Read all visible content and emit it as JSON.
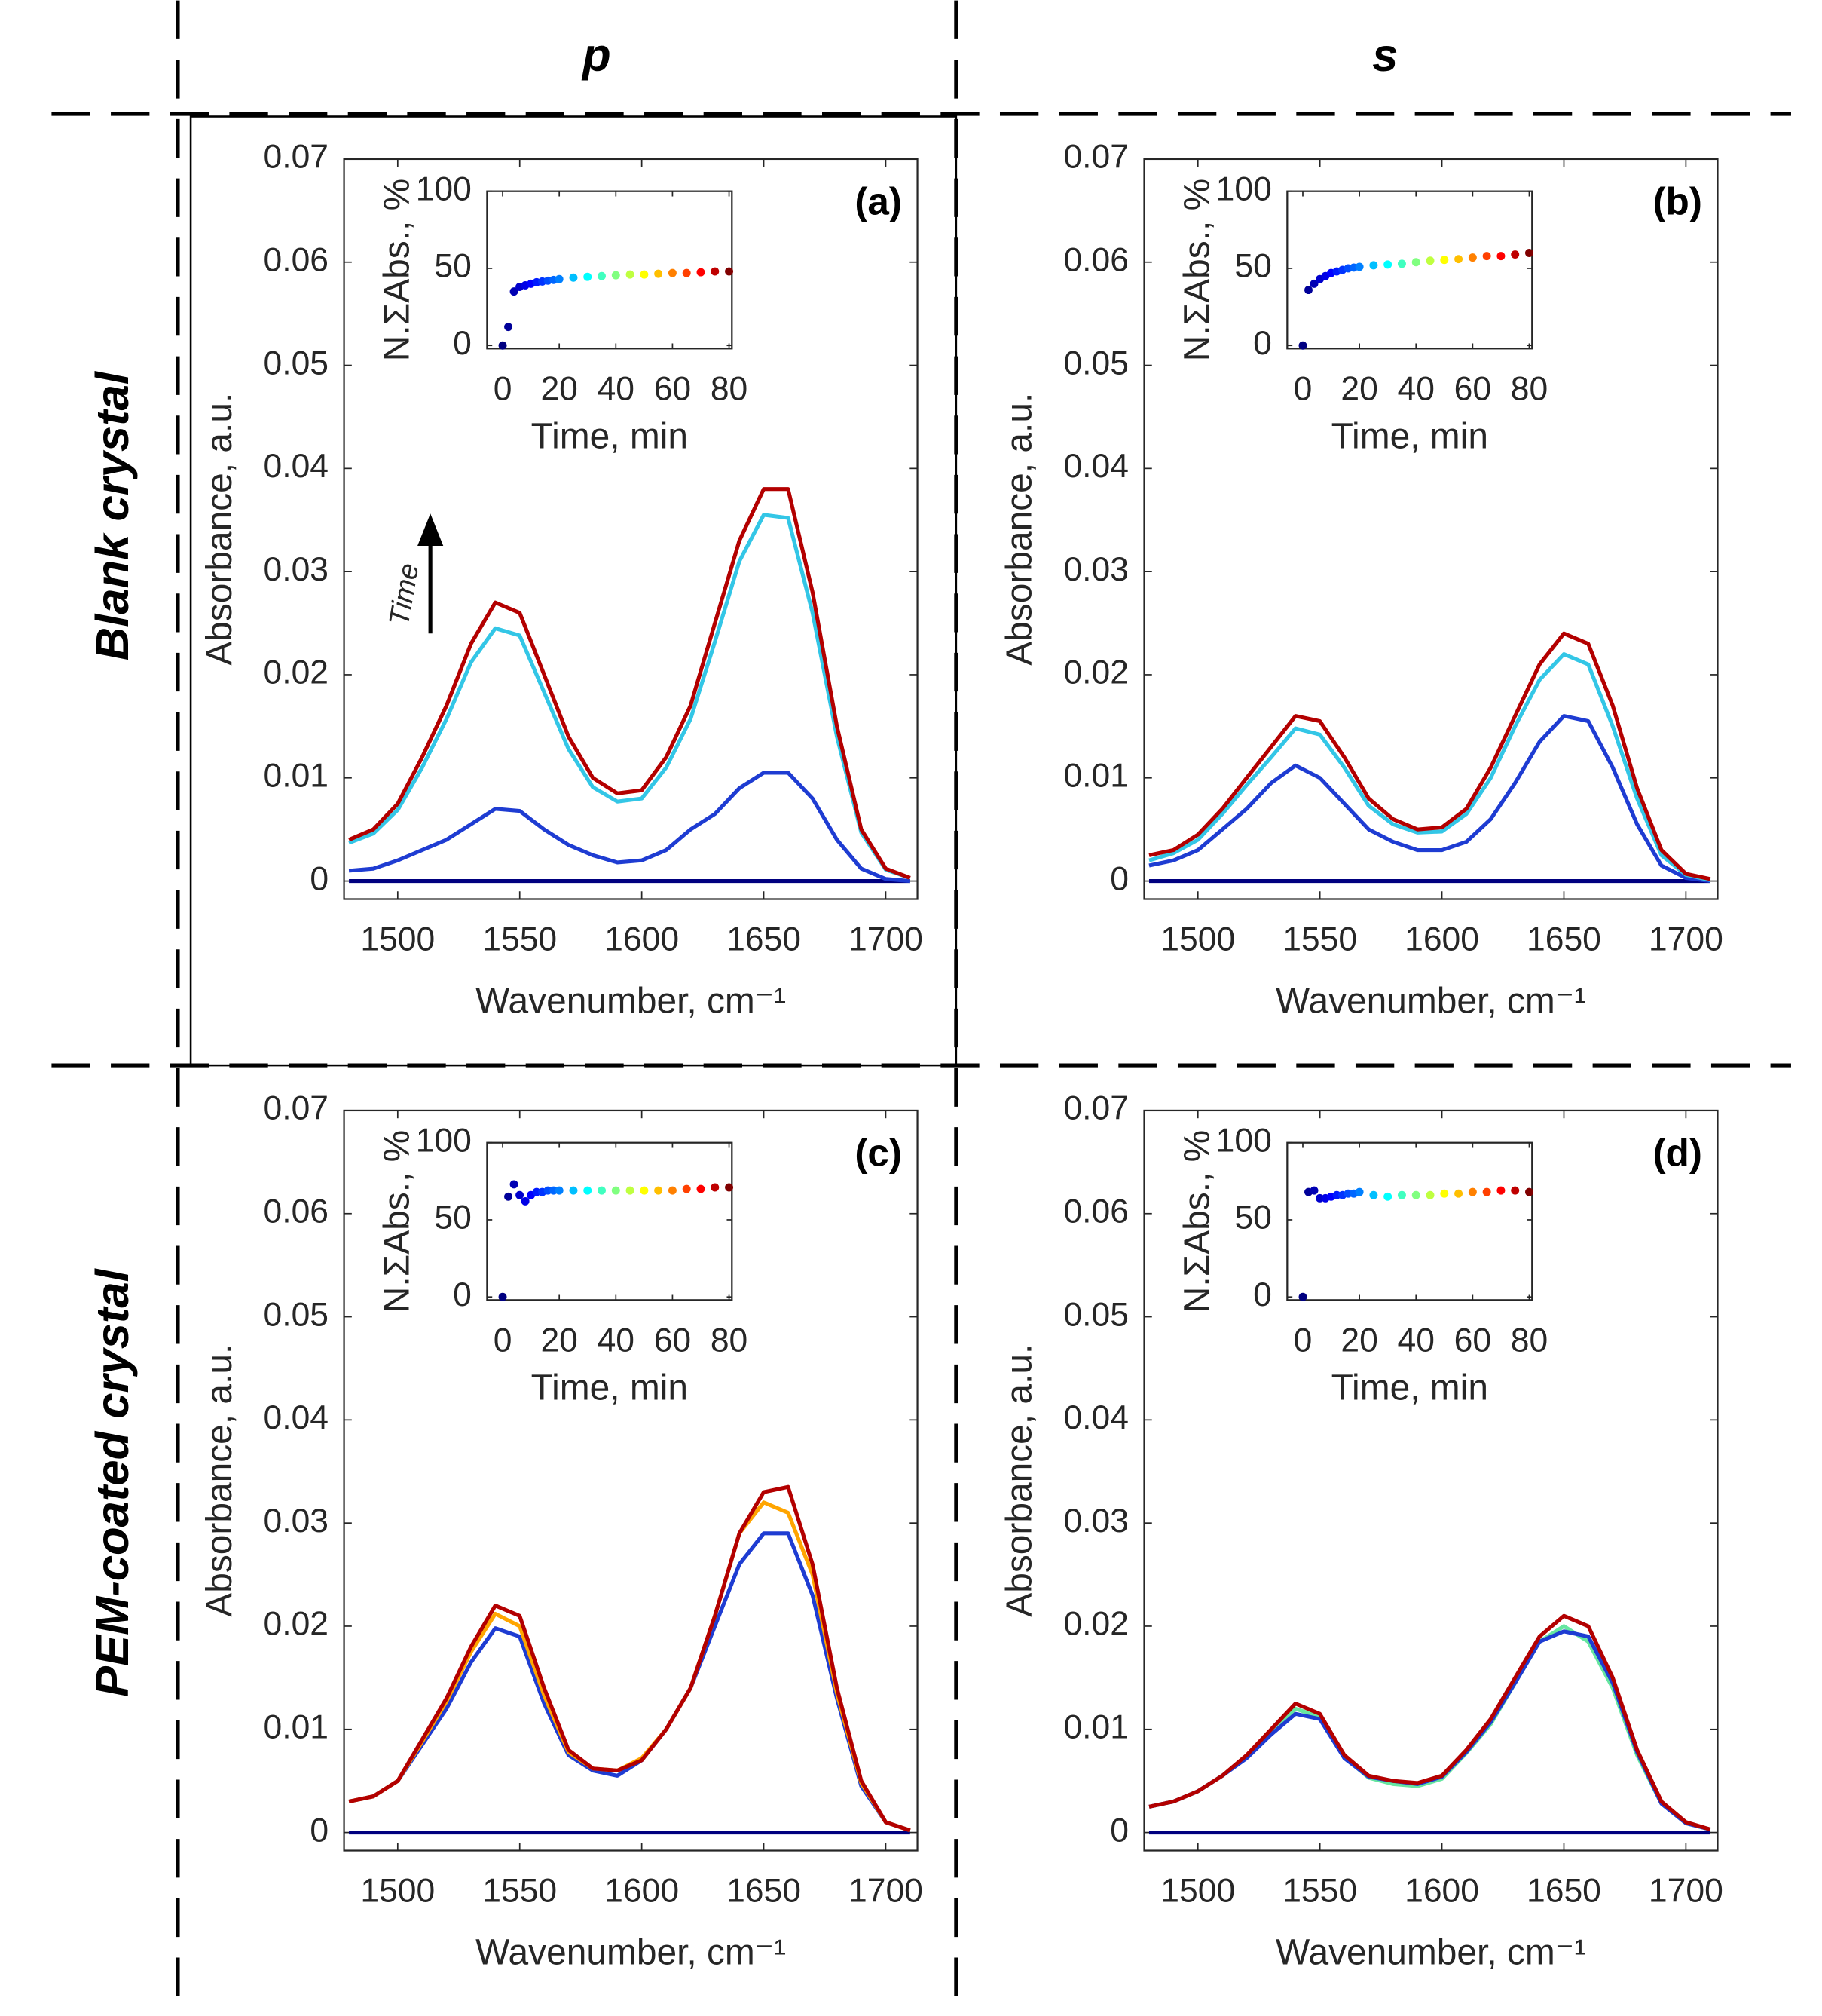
{
  "column_labels": [
    "p",
    "s"
  ],
  "row_labels": [
    "Blank crystal",
    "PEM-coated crystal"
  ],
  "chart_data": [
    {
      "type": "line",
      "panel_label": "(a)",
      "annotation": "Time",
      "ylabel": "Absorbance, a.u.",
      "xlabel": "Wavenumber, cm⁻¹",
      "xlim": [
        1478,
        1713
      ],
      "ylim": [
        -0.00175,
        0.07
      ],
      "xticks": [
        1500,
        1550,
        1600,
        1650,
        1700
      ],
      "yticks": [
        0,
        0.01,
        0.02,
        0.03,
        0.04,
        0.05,
        0.06,
        0.07
      ],
      "x": [
        1480,
        1490,
        1500,
        1510,
        1520,
        1530,
        1540,
        1550,
        1560,
        1570,
        1580,
        1590,
        1600,
        1610,
        1620,
        1630,
        1640,
        1650,
        1660,
        1670,
        1680,
        1690,
        1700,
        1710
      ],
      "series": [
        {
          "color": "#00007f",
          "values": [
            0,
            0,
            0,
            0,
            0,
            0,
            0,
            0,
            0,
            0,
            0,
            0,
            0,
            0,
            0,
            0,
            0,
            0,
            0,
            0,
            0,
            0,
            0,
            0
          ]
        },
        {
          "color": "#1e3cd2",
          "values": [
            0.001,
            0.0012,
            0.002,
            0.003,
            0.004,
            0.0055,
            0.007,
            0.0068,
            0.005,
            0.0035,
            0.0025,
            0.0018,
            0.002,
            0.003,
            0.005,
            0.0065,
            0.009,
            0.0105,
            0.0105,
            0.008,
            0.004,
            0.0012,
            0.0002,
            0
          ]
        },
        {
          "color": "#33c6e6",
          "values": [
            0.0037,
            0.0046,
            0.0069,
            0.011,
            0.0157,
            0.0212,
            0.0245,
            0.0238,
            0.0183,
            0.0128,
            0.0091,
            0.0077,
            0.008,
            0.011,
            0.0157,
            0.0232,
            0.031,
            0.0355,
            0.0352,
            0.026,
            0.014,
            0.0047,
            0.0011,
            0.0003
          ]
        },
        {
          "color": "#b30000",
          "values": [
            0.004,
            0.005,
            0.0075,
            0.012,
            0.017,
            0.023,
            0.027,
            0.026,
            0.02,
            0.014,
            0.01,
            0.0085,
            0.0088,
            0.012,
            0.017,
            0.025,
            0.033,
            0.038,
            0.038,
            0.028,
            0.015,
            0.005,
            0.0012,
            0.0003
          ]
        }
      ],
      "inset": {
        "type": "scatter",
        "ylabel": "N.ΣAbs., %",
        "xlabel": "Time, min",
        "colormap": "jet",
        "xlim": [
          -5.5,
          81
        ],
        "ylim": [
          -2,
          100
        ],
        "xticks": [
          0,
          20,
          40,
          60,
          80
        ],
        "yticks": [
          0,
          50,
          100
        ],
        "x": [
          0,
          2,
          4,
          6,
          8,
          10,
          12,
          14,
          16,
          18,
          20,
          25,
          30,
          35,
          40,
          45,
          50,
          55,
          60,
          65,
          70,
          75,
          80
        ],
        "values": [
          0,
          12,
          35,
          38,
          39,
          40,
          41,
          41.5,
          42,
          42.5,
          43,
          44,
          44.5,
          45,
          45.5,
          46,
          46,
          46.5,
          47,
          47,
          47.5,
          48,
          48
        ]
      }
    },
    {
      "type": "line",
      "panel_label": "(b)",
      "ylabel": "Absorbance, a.u.",
      "xlabel": "Wavenumber, cm⁻¹",
      "xlim": [
        1478,
        1713
      ],
      "ylim": [
        -0.00175,
        0.07
      ],
      "xticks": [
        1500,
        1550,
        1600,
        1650,
        1700
      ],
      "yticks": [
        0,
        0.01,
        0.02,
        0.03,
        0.04,
        0.05,
        0.06,
        0.07
      ],
      "x": [
        1480,
        1490,
        1500,
        1510,
        1520,
        1530,
        1540,
        1550,
        1560,
        1570,
        1580,
        1590,
        1600,
        1610,
        1620,
        1630,
        1640,
        1650,
        1660,
        1670,
        1680,
        1690,
        1700,
        1710
      ],
      "series": [
        {
          "color": "#00007f",
          "values": [
            0,
            0,
            0,
            0,
            0,
            0,
            0,
            0,
            0,
            0,
            0,
            0,
            0,
            0,
            0,
            0,
            0,
            0,
            0,
            0,
            0,
            0,
            0,
            0
          ]
        },
        {
          "color": "#1e3cd2",
          "values": [
            0.0015,
            0.002,
            0.003,
            0.005,
            0.007,
            0.0095,
            0.0112,
            0.01,
            0.0075,
            0.005,
            0.0038,
            0.003,
            0.003,
            0.0038,
            0.006,
            0.0095,
            0.0135,
            0.016,
            0.0155,
            0.011,
            0.0055,
            0.0015,
            0.0003,
            0
          ]
        },
        {
          "color": "#33c6e6",
          "values": [
            0.002,
            0.0027,
            0.004,
            0.0065,
            0.0093,
            0.012,
            0.0148,
            0.0142,
            0.011,
            0.0073,
            0.0055,
            0.0047,
            0.0048,
            0.0065,
            0.01,
            0.015,
            0.0195,
            0.022,
            0.021,
            0.015,
            0.008,
            0.0025,
            0.0006,
            0.0001
          ]
        },
        {
          "color": "#b30000",
          "values": [
            0.0025,
            0.003,
            0.0045,
            0.007,
            0.01,
            0.013,
            0.016,
            0.0155,
            0.012,
            0.008,
            0.006,
            0.005,
            0.0052,
            0.007,
            0.011,
            0.016,
            0.021,
            0.024,
            0.023,
            0.017,
            0.009,
            0.003,
            0.0007,
            0.0002
          ]
        }
      ],
      "inset": {
        "type": "scatter",
        "ylabel": "N.ΣAbs., %",
        "xlabel": "Time, min",
        "colormap": "jet",
        "xlim": [
          -5.5,
          81
        ],
        "ylim": [
          -2,
          100
        ],
        "xticks": [
          0,
          20,
          40,
          60,
          80
        ],
        "yticks": [
          0,
          50,
          100
        ],
        "x": [
          0,
          2,
          4,
          6,
          8,
          10,
          12,
          14,
          16,
          18,
          20,
          25,
          30,
          35,
          40,
          45,
          50,
          55,
          60,
          65,
          70,
          75,
          80
        ],
        "values": [
          0,
          36,
          40,
          43,
          45,
          47,
          48,
          49,
          50,
          50.5,
          51,
          52,
          52.5,
          53,
          54,
          55,
          55.5,
          56,
          57,
          58,
          58,
          59,
          60
        ]
      }
    },
    {
      "type": "line",
      "panel_label": "(c)",
      "ylabel": "Absorbance, a.u.",
      "xlabel": "Wavenumber, cm⁻¹",
      "xlim": [
        1478,
        1713
      ],
      "ylim": [
        -0.00175,
        0.07
      ],
      "xticks": [
        1500,
        1550,
        1600,
        1650,
        1700
      ],
      "yticks": [
        0,
        0.01,
        0.02,
        0.03,
        0.04,
        0.05,
        0.06,
        0.07
      ],
      "x": [
        1480,
        1490,
        1500,
        1510,
        1520,
        1530,
        1540,
        1550,
        1560,
        1570,
        1580,
        1590,
        1600,
        1610,
        1620,
        1630,
        1640,
        1650,
        1660,
        1670,
        1680,
        1690,
        1700,
        1710
      ],
      "series": [
        {
          "color": "#00007f",
          "values": [
            0,
            0,
            0,
            0,
            0,
            0,
            0,
            0,
            0,
            0,
            0,
            0,
            0,
            0,
            0,
            0,
            0,
            0,
            0,
            0,
            0,
            0,
            0,
            0
          ]
        },
        {
          "color": "#1e3cd2",
          "values": [
            0.003,
            0.0035,
            0.005,
            0.0085,
            0.012,
            0.0165,
            0.0198,
            0.019,
            0.0125,
            0.0075,
            0.006,
            0.0055,
            0.007,
            0.01,
            0.014,
            0.02,
            0.026,
            0.029,
            0.029,
            0.023,
            0.013,
            0.0045,
            0.001,
            0.0002
          ]
        },
        {
          "color": "#ffa500",
          "values": [
            0.003,
            0.0035,
            0.005,
            0.0088,
            0.0127,
            0.0175,
            0.0212,
            0.02,
            0.0133,
            0.0078,
            0.0062,
            0.006,
            0.0072,
            0.01,
            0.014,
            0.021,
            0.029,
            0.032,
            0.031,
            0.025,
            0.0135,
            0.0048,
            0.001,
            0.0002
          ]
        },
        {
          "color": "#b30000",
          "values": [
            0.003,
            0.0035,
            0.005,
            0.009,
            0.013,
            0.018,
            0.022,
            0.021,
            0.014,
            0.008,
            0.0062,
            0.006,
            0.007,
            0.01,
            0.014,
            0.021,
            0.029,
            0.033,
            0.0335,
            0.026,
            0.014,
            0.005,
            0.001,
            0.0002
          ]
        }
      ],
      "inset": {
        "type": "scatter",
        "ylabel": "N.ΣAbs., %",
        "xlabel": "Time, min",
        "colormap": "jet",
        "xlim": [
          -5.5,
          81
        ],
        "ylim": [
          -2,
          100
        ],
        "xticks": [
          0,
          20,
          40,
          60,
          80
        ],
        "yticks": [
          0,
          50,
          100
        ],
        "x": [
          0,
          2,
          4,
          6,
          8,
          10,
          12,
          14,
          16,
          18,
          20,
          25,
          30,
          35,
          40,
          45,
          50,
          55,
          60,
          65,
          70,
          75,
          80
        ],
        "values": [
          0,
          65,
          73,
          66,
          62,
          66,
          68,
          68,
          69,
          69,
          69,
          69,
          69,
          69,
          69,
          69,
          69,
          69,
          69,
          70,
          70,
          71,
          71
        ]
      }
    },
    {
      "type": "line",
      "panel_label": "(d)",
      "ylabel": "Absorbance, a.u.",
      "xlabel": "Wavenumber, cm⁻¹",
      "xlim": [
        1478,
        1713
      ],
      "ylim": [
        -0.00175,
        0.07
      ],
      "xticks": [
        1500,
        1550,
        1600,
        1650,
        1700
      ],
      "yticks": [
        0,
        0.01,
        0.02,
        0.03,
        0.04,
        0.05,
        0.06,
        0.07
      ],
      "x": [
        1480,
        1490,
        1500,
        1510,
        1520,
        1530,
        1540,
        1550,
        1560,
        1570,
        1580,
        1590,
        1600,
        1610,
        1620,
        1630,
        1640,
        1650,
        1660,
        1670,
        1680,
        1690,
        1700,
        1710
      ],
      "series": [
        {
          "color": "#00007f",
          "values": [
            0,
            0,
            0,
            0,
            0,
            0,
            0,
            0,
            0,
            0,
            0,
            0,
            0,
            0,
            0,
            0,
            0,
            0,
            0,
            0,
            0,
            0,
            0,
            0
          ]
        },
        {
          "color": "#66e6a0",
          "values": [
            0.0025,
            0.003,
            0.004,
            0.0055,
            0.0073,
            0.0098,
            0.012,
            0.0112,
            0.0073,
            0.0053,
            0.0047,
            0.0045,
            0.0052,
            0.0077,
            0.0105,
            0.0145,
            0.0185,
            0.02,
            0.0185,
            0.014,
            0.0075,
            0.0028,
            0.0009,
            0.0003
          ]
        },
        {
          "color": "#1e3cd2",
          "values": [
            0.0025,
            0.003,
            0.004,
            0.0055,
            0.0072,
            0.0095,
            0.0115,
            0.011,
            0.0072,
            0.0054,
            0.005,
            0.0047,
            0.0054,
            0.0078,
            0.0107,
            0.0145,
            0.0185,
            0.0195,
            0.019,
            0.0145,
            0.0078,
            0.0028,
            0.0009,
            0.0003
          ]
        },
        {
          "color": "#b30000",
          "values": [
            0.0025,
            0.003,
            0.004,
            0.0055,
            0.0075,
            0.01,
            0.0125,
            0.0115,
            0.0075,
            0.0055,
            0.005,
            0.0048,
            0.0055,
            0.008,
            0.011,
            0.015,
            0.019,
            0.021,
            0.02,
            0.015,
            0.008,
            0.003,
            0.001,
            0.0003
          ]
        }
      ],
      "inset": {
        "type": "scatter",
        "ylabel": "N.ΣAbs., %",
        "xlabel": "Time, min",
        "colormap": "jet",
        "xlim": [
          -5.5,
          81
        ],
        "ylim": [
          -2,
          100
        ],
        "xticks": [
          0,
          20,
          40,
          60,
          80
        ],
        "yticks": [
          0,
          50,
          100
        ],
        "x": [
          0,
          2,
          4,
          6,
          8,
          10,
          12,
          14,
          16,
          18,
          20,
          25,
          30,
          35,
          40,
          45,
          50,
          55,
          60,
          65,
          70,
          75,
          80
        ],
        "values": [
          0,
          68,
          69,
          64,
          64,
          65,
          66,
          66,
          67,
          67,
          68,
          66,
          65,
          66,
          66,
          66,
          67,
          67,
          68,
          68,
          69,
          69,
          68
        ]
      }
    }
  ]
}
